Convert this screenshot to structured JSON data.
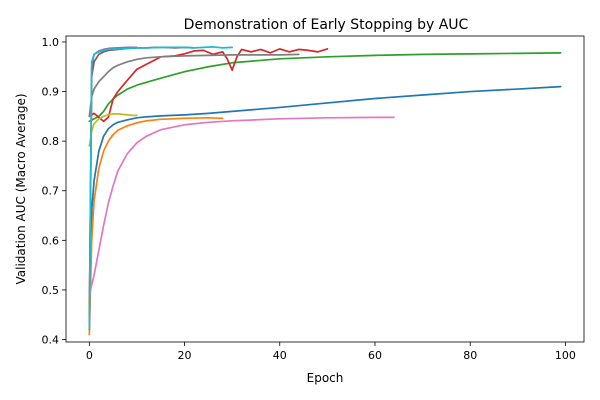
{
  "chart_data": {
    "type": "line",
    "title": "Demonstration of Early Stopping by AUC",
    "xlabel": "Epoch",
    "ylabel": "Validation AUC (Macro Average)",
    "xlim": [
      -4.9,
      103.9
    ],
    "ylim": [
      0.395,
      1.012
    ],
    "xticks": [
      0,
      20,
      40,
      60,
      80,
      100
    ],
    "yticks": [
      0.4,
      0.5,
      0.6,
      0.7,
      0.8,
      0.9,
      1.0
    ],
    "xtick_labels": [
      "0",
      "20",
      "40",
      "60",
      "80",
      "100"
    ],
    "ytick_labels": [
      "0.4",
      "0.5",
      "0.6",
      "0.7",
      "0.8",
      "0.9",
      "1.0"
    ],
    "grid": false,
    "legend": "none",
    "series": [
      {
        "color": "#1f77b4",
        "x": [
          0,
          0.5,
          1,
          2,
          3,
          4,
          5,
          6,
          8,
          10,
          12,
          15,
          20,
          25,
          30,
          40,
          50,
          60,
          70,
          80,
          90,
          99
        ],
        "y": [
          0.42,
          0.66,
          0.72,
          0.78,
          0.81,
          0.825,
          0.833,
          0.838,
          0.843,
          0.847,
          0.849,
          0.851,
          0.853,
          0.856,
          0.86,
          0.868,
          0.877,
          0.886,
          0.893,
          0.9,
          0.905,
          0.91
        ]
      },
      {
        "color": "#ff7f0e",
        "x": [
          0,
          0.5,
          1,
          2,
          3,
          4,
          5,
          6,
          8,
          10,
          12,
          15,
          20,
          25,
          28
        ],
        "y": [
          0.41,
          0.6,
          0.68,
          0.745,
          0.78,
          0.8,
          0.813,
          0.822,
          0.831,
          0.837,
          0.841,
          0.844,
          0.846,
          0.847,
          0.846
        ]
      },
      {
        "color": "#2ca02c",
        "x": [
          0,
          1,
          2,
          3,
          4,
          5,
          6,
          8,
          10,
          15,
          20,
          25,
          30,
          40,
          50,
          60,
          70,
          80,
          90,
          99
        ],
        "y": [
          0.84,
          0.845,
          0.85,
          0.86,
          0.875,
          0.885,
          0.893,
          0.905,
          0.913,
          0.927,
          0.94,
          0.95,
          0.958,
          0.966,
          0.97,
          0.973,
          0.975,
          0.976,
          0.977,
          0.978
        ]
      },
      {
        "color": "#d62728",
        "x": [
          0,
          1,
          2,
          3,
          4,
          5,
          6,
          8,
          10,
          12,
          15,
          18,
          20,
          22,
          24,
          26,
          28,
          29,
          30,
          31,
          32,
          34,
          36,
          38,
          40,
          42,
          44,
          46,
          48,
          50
        ],
        "y": [
          0.85,
          0.856,
          0.848,
          0.84,
          0.848,
          0.885,
          0.9,
          0.923,
          0.945,
          0.955,
          0.97,
          0.972,
          0.976,
          0.982,
          0.983,
          0.975,
          0.98,
          0.965,
          0.943,
          0.97,
          0.985,
          0.98,
          0.985,
          0.978,
          0.986,
          0.98,
          0.985,
          0.983,
          0.98,
          0.986
        ]
      },
      {
        "color": "#9467bd",
        "x": [
          0,
          0.5,
          1,
          2,
          3,
          4,
          6,
          8,
          10
        ],
        "y": [
          0.43,
          0.95,
          0.975,
          0.982,
          0.985,
          0.987,
          0.988,
          0.989,
          0.989
        ]
      },
      {
        "color": "#8c564b",
        "x": [
          0,
          0.5,
          1,
          2,
          3,
          4,
          6,
          8,
          10,
          12,
          14,
          16,
          18,
          20,
          22
        ],
        "y": [
          0.45,
          0.93,
          0.96,
          0.975,
          0.98,
          0.983,
          0.985,
          0.987,
          0.988,
          0.988,
          0.989,
          0.989,
          0.988,
          0.989,
          0.988
        ]
      },
      {
        "color": "#e377c2",
        "x": [
          0,
          1,
          2,
          3,
          4,
          5,
          6,
          8,
          10,
          12,
          15,
          20,
          25,
          30,
          40,
          50,
          60,
          64
        ],
        "y": [
          0.49,
          0.53,
          0.58,
          0.63,
          0.675,
          0.71,
          0.74,
          0.775,
          0.797,
          0.81,
          0.823,
          0.833,
          0.838,
          0.841,
          0.845,
          0.847,
          0.848,
          0.848
        ]
      },
      {
        "color": "#7f7f7f",
        "x": [
          0,
          0.5,
          1,
          2,
          3,
          4,
          5,
          6,
          8,
          10,
          12,
          15,
          20,
          25,
          30,
          35,
          40,
          44
        ],
        "y": [
          0.85,
          0.89,
          0.905,
          0.92,
          0.93,
          0.94,
          0.948,
          0.953,
          0.96,
          0.965,
          0.968,
          0.97,
          0.972,
          0.973,
          0.974,
          0.974,
          0.974,
          0.975
        ]
      },
      {
        "color": "#bcbd22",
        "x": [
          0,
          0.5,
          1,
          2,
          3,
          4,
          5,
          6,
          7,
          8,
          9,
          10
        ],
        "y": [
          0.79,
          0.82,
          0.835,
          0.845,
          0.85,
          0.853,
          0.855,
          0.855,
          0.854,
          0.853,
          0.852,
          0.852
        ]
      },
      {
        "color": "#17becf",
        "x": [
          0,
          0.5,
          1,
          2,
          3,
          4,
          6,
          8,
          10,
          12,
          15,
          18,
          20,
          22,
          24,
          26,
          28,
          30
        ],
        "y": [
          0.42,
          0.96,
          0.975,
          0.98,
          0.983,
          0.985,
          0.986,
          0.987,
          0.988,
          0.988,
          0.989,
          0.989,
          0.989,
          0.988,
          0.989,
          0.99,
          0.988,
          0.989
        ]
      }
    ]
  }
}
